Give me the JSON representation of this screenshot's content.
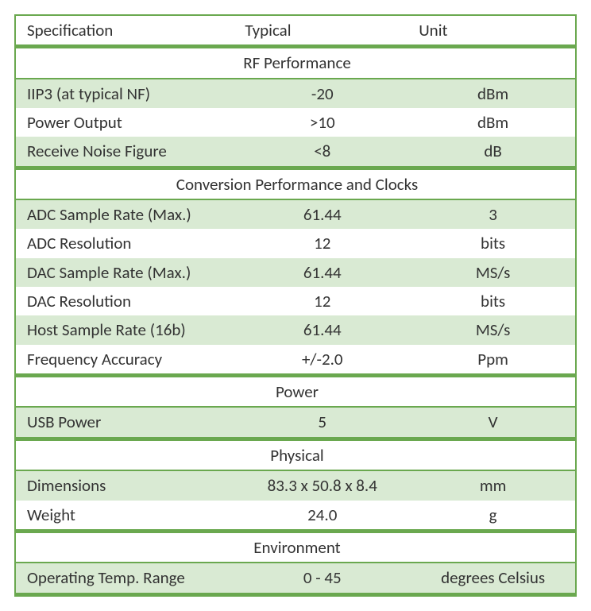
{
  "table": {
    "type": "table",
    "colors": {
      "rule": "#6aa84f",
      "stripe_bg": "#d9ead3",
      "text": "#333333",
      "background": "#ffffff"
    },
    "font": {
      "family": "Calibri",
      "size_pt": 16,
      "weight": 400
    },
    "columns": [
      {
        "key": "spec",
        "label": "Specification",
        "align": "left",
        "width_pct": 39
      },
      {
        "key": "typ",
        "label": "Typical",
        "align": "center",
        "width_pct": 31
      },
      {
        "key": "unit",
        "label": "Unit",
        "align": "center",
        "width_pct": 30
      }
    ],
    "sections": [
      {
        "title": "RF Performance",
        "rows": [
          {
            "spec": "IIP3 (at typical NF)",
            "typ": "-20",
            "unit": "dBm",
            "striped": true
          },
          {
            "spec": "Power Output",
            "typ": ">10",
            "unit": "dBm",
            "striped": false
          },
          {
            "spec": "Receive Noise Figure",
            "typ": "<8",
            "unit": "dB",
            "striped": true
          }
        ]
      },
      {
        "title": "Conversion Performance and Clocks",
        "rows": [
          {
            "spec": "ADC Sample Rate (Max.)",
            "typ": "61.44",
            "unit": "3",
            "striped": true
          },
          {
            "spec": "ADC Resolution",
            "typ": "12",
            "unit": "bits",
            "striped": false
          },
          {
            "spec": "DAC Sample Rate (Max.)",
            "typ": "61.44",
            "unit": "MS/s",
            "striped": true
          },
          {
            "spec": "DAC Resolution",
            "typ": "12",
            "unit": "bits",
            "striped": false
          },
          {
            "spec": "Host Sample Rate (16b)",
            "typ": "61.44",
            "unit": "MS/s",
            "striped": true
          },
          {
            "spec": "Frequency Accuracy",
            "typ": "+/-2.0",
            "unit": "Ppm",
            "striped": false
          }
        ]
      },
      {
        "title": "Power",
        "rows": [
          {
            "spec": "USB Power",
            "typ": "5",
            "unit": "V",
            "striped": true
          }
        ]
      },
      {
        "title": "Physical",
        "rows": [
          {
            "spec": "Dimensions",
            "typ": "83.3 x 50.8 x 8.4",
            "unit": "mm",
            "striped": true
          },
          {
            "spec": "Weight",
            "typ": "24.0",
            "unit": "g",
            "striped": false
          }
        ]
      },
      {
        "title": "Environment",
        "rows": [
          {
            "spec": "Operating Temp. Range",
            "typ": "0 - 45",
            "unit": "degrees Celsius",
            "striped": true
          }
        ]
      }
    ]
  }
}
